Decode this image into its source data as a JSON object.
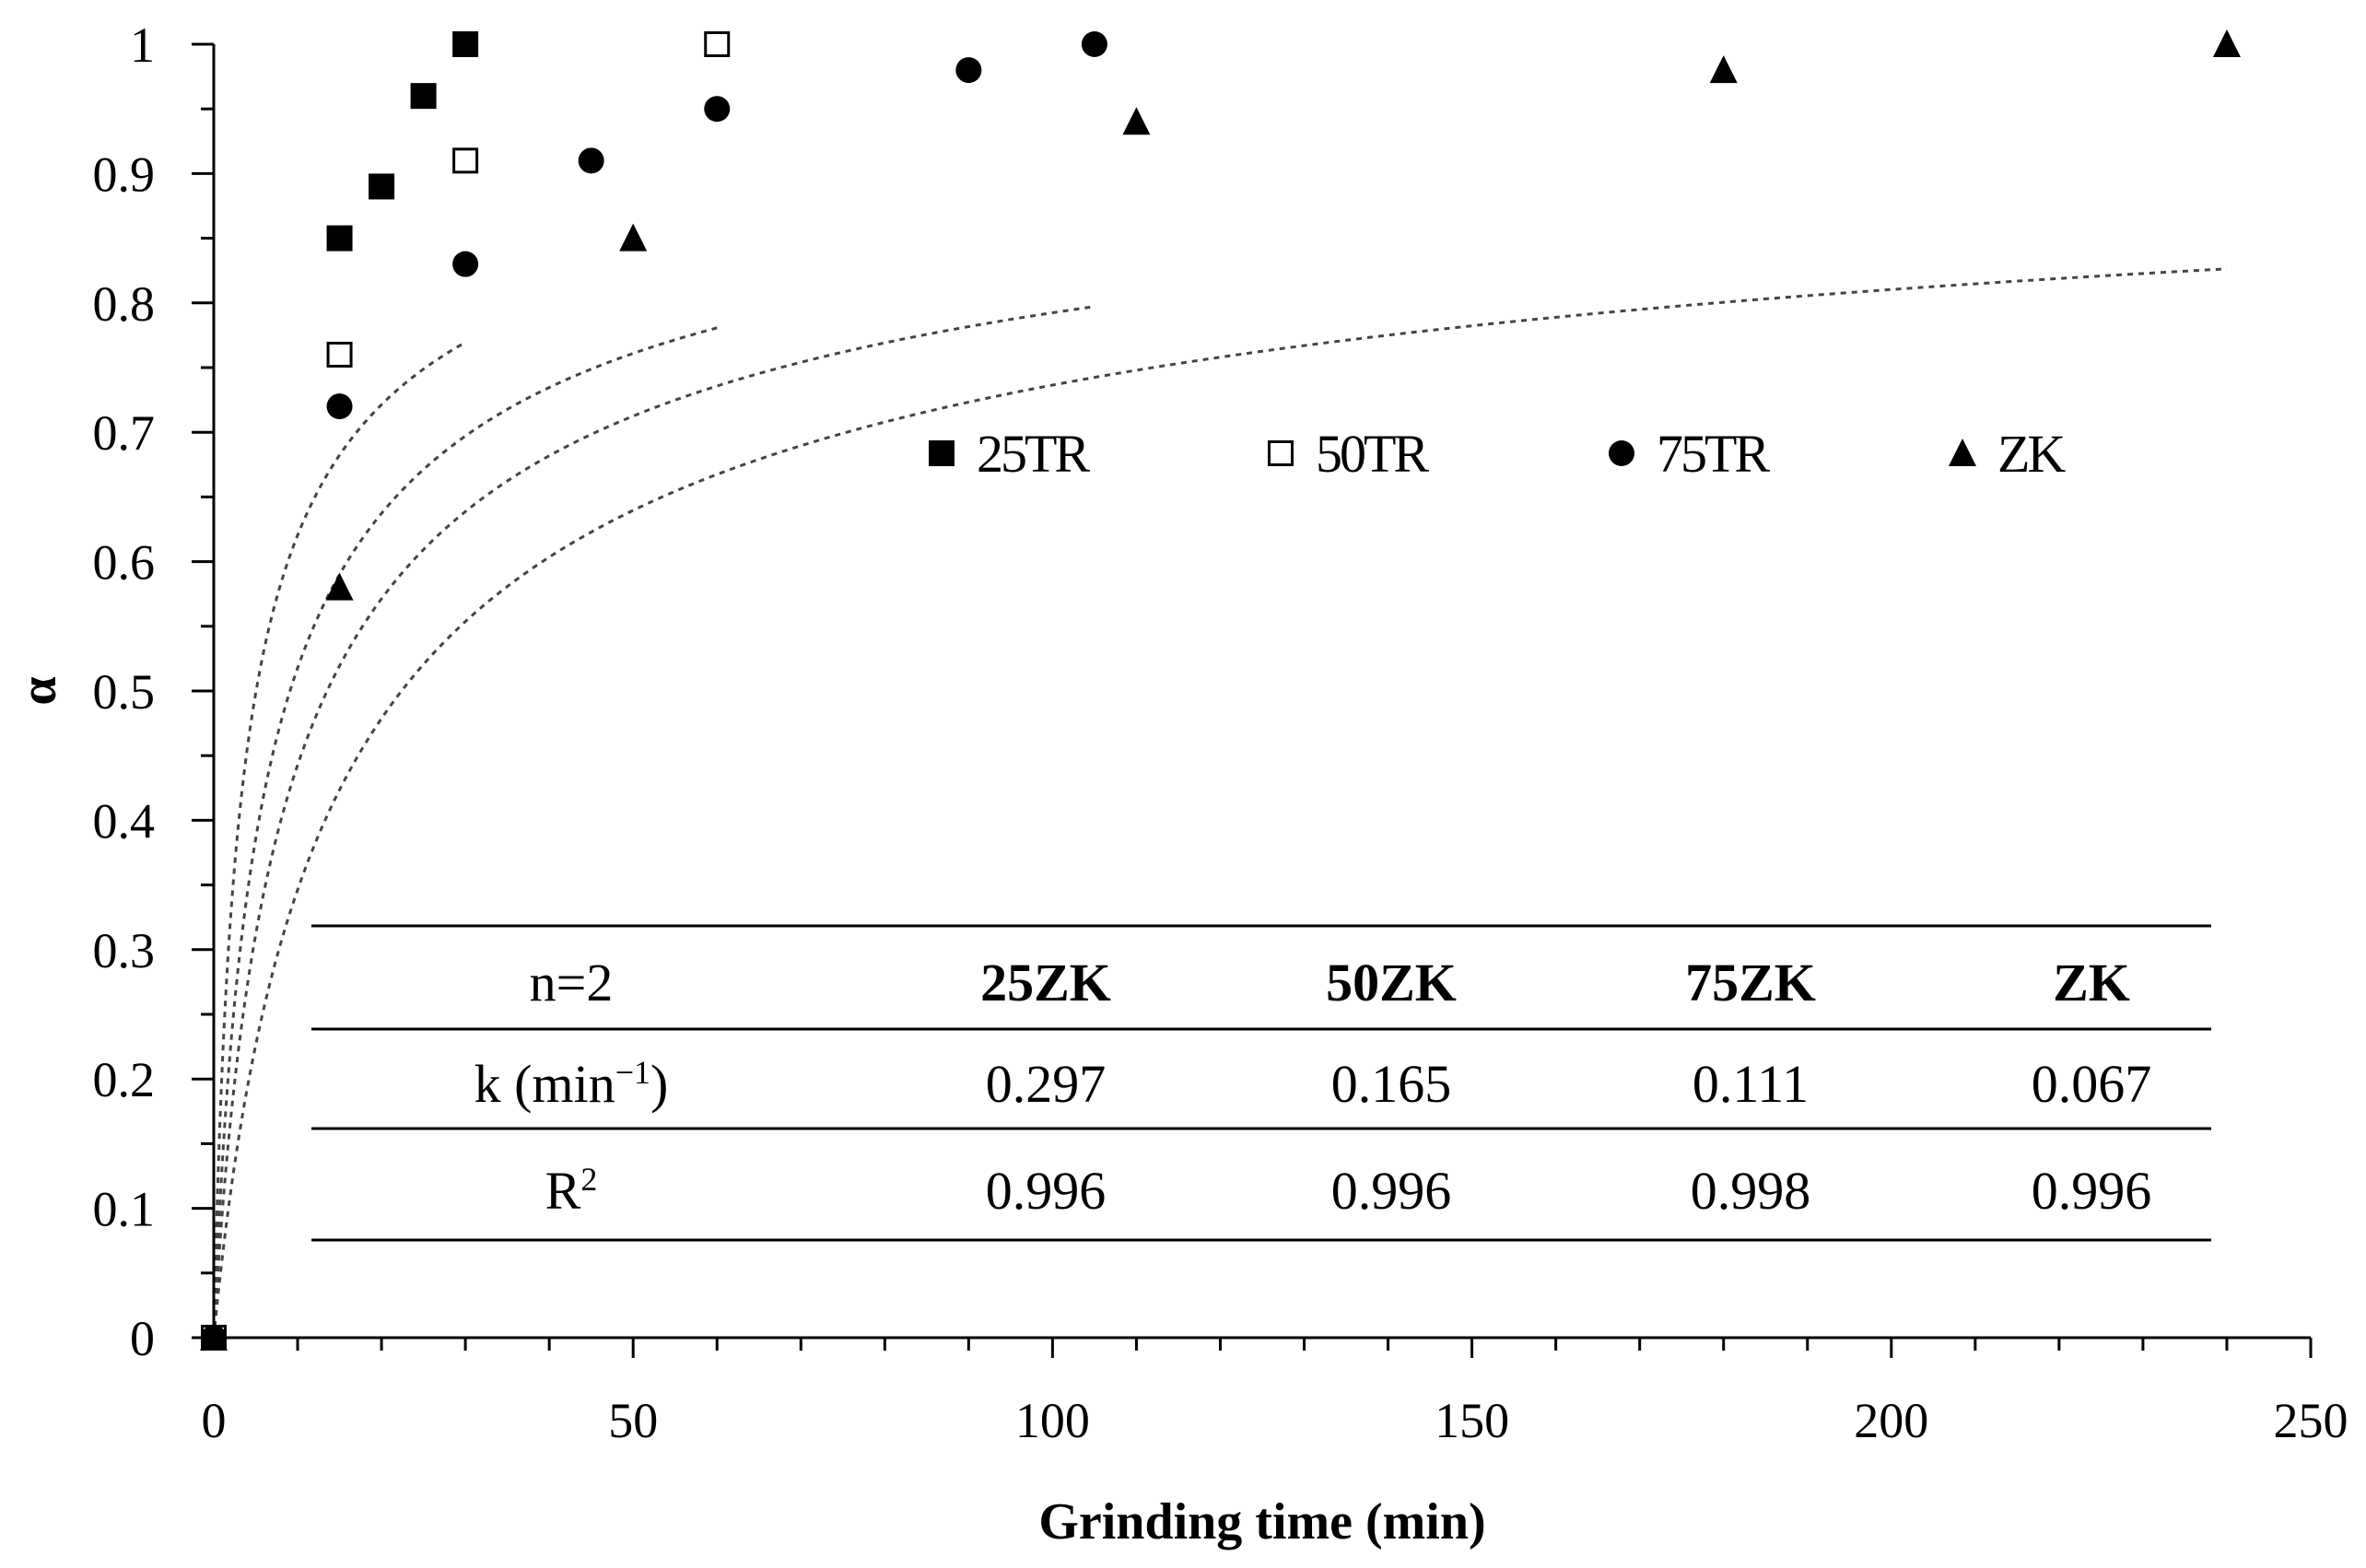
{
  "chart_data": {
    "type": "scatter",
    "title": "",
    "xlabel": "Grinding time (min)",
    "ylabel": "α",
    "xlim": [
      0,
      250
    ],
    "ylim": [
      0,
      1
    ],
    "x_ticks": [
      0,
      50,
      100,
      150,
      200,
      250
    ],
    "y_ticks": [
      0,
      0.1,
      0.2,
      0.3,
      0.4,
      0.5,
      0.6,
      0.7,
      0.8,
      0.9,
      1
    ],
    "y_tick_labels": [
      "0",
      "0.1",
      "0.2",
      "0.3",
      "0.4",
      "0.5",
      "0.6",
      "0.7",
      "0.8",
      "0.9",
      "1"
    ],
    "grid": false,
    "legend_position": "middle-right",
    "series": [
      {
        "name": "25TR",
        "marker": "square-filled",
        "x": [
          0,
          15,
          20,
          25,
          30
        ],
        "y": [
          0,
          0.85,
          0.89,
          0.96,
          1.0
        ],
        "fit_k": 0.297,
        "fit_x_max": 30
      },
      {
        "name": "50TR",
        "marker": "square-open",
        "x": [
          0,
          15,
          30,
          60
        ],
        "y": [
          0,
          0.76,
          0.91,
          1.0
        ],
        "fit_k": 0.165,
        "fit_x_max": 60
      },
      {
        "name": "75TR",
        "marker": "circle-filled",
        "x": [
          0,
          15,
          30,
          45,
          60,
          90,
          105
        ],
        "y": [
          0,
          0.72,
          0.83,
          0.91,
          0.95,
          0.98,
          1.0
        ],
        "fit_k": 0.111,
        "fit_x_max": 105
      },
      {
        "name": "ZK",
        "marker": "triangle-filled",
        "x": [
          0,
          15,
          50,
          110,
          180,
          240
        ],
        "y": [
          0,
          0.58,
          0.85,
          0.94,
          0.98,
          1.0
        ],
        "fit_k": 0.067,
        "fit_x_max": 240
      }
    ],
    "fit_model": "alpha = 1 - 1/sqrt(1 + 2 k t)",
    "table": {
      "header": [
        "n=2",
        "25ZK",
        "50ZK",
        "75ZK",
        "ZK"
      ],
      "rows": [
        {
          "label": "k (min",
          "label_sup": "−1",
          "label_suffix": ")",
          "values": [
            "0.297",
            "0.165",
            "0.111",
            "0.067"
          ]
        },
        {
          "label": "R",
          "label_sup": "2",
          "label_suffix": "",
          "values": [
            "0.996",
            "0.996",
            "0.998",
            "0.996"
          ]
        }
      ]
    }
  }
}
